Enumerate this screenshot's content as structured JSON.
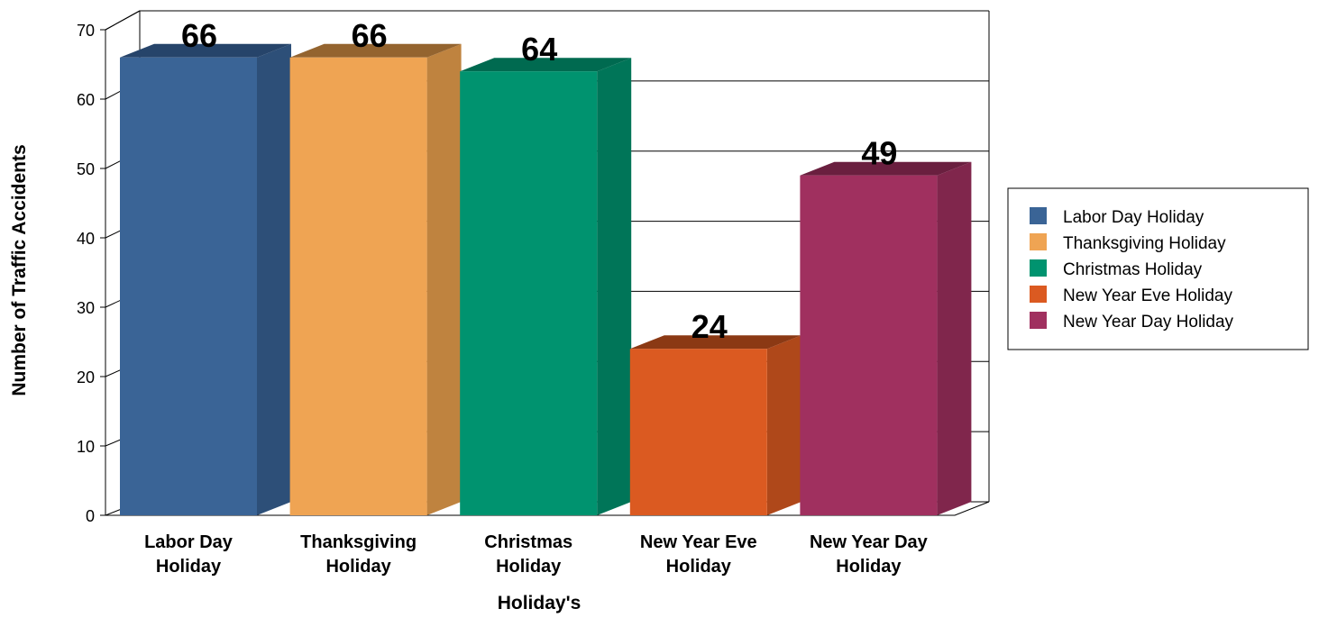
{
  "chart_data": {
    "type": "bar",
    "categories": [
      "Labor Day Holiday",
      "Thanksgiving Holiday",
      "Christmas Holiday",
      "New Year Eve Holiday",
      "New Year Day Holiday"
    ],
    "category_lines": [
      [
        "Labor Day",
        "Holiday"
      ],
      [
        "Thanksgiving",
        "Holiday"
      ],
      [
        "Christmas",
        "Holiday"
      ],
      [
        "New Year Eve",
        "Holiday"
      ],
      [
        "New Year Day",
        "Holiday"
      ]
    ],
    "values": [
      66,
      66,
      64,
      24,
      49
    ],
    "value_labels": [
      "66",
      "66",
      "64",
      "24",
      "49"
    ],
    "colors": [
      "#3a6496",
      "#efa453",
      "#00936f",
      "#db5a21",
      "#a0305f"
    ],
    "side_colors": [
      "#2d4f78",
      "#bf833f",
      "#007558",
      "#af481a",
      "#80264c"
    ],
    "top_colors": [
      "#26446a",
      "#94642f",
      "#006a50",
      "#8b3914",
      "#6a1f3f"
    ],
    "xlabel": "Holiday's",
    "ylabel": "Number of Traffic Accidents",
    "ylim": [
      0,
      70
    ],
    "yticks": [
      "0",
      "10",
      "20",
      "30",
      "40",
      "50",
      "60",
      "70"
    ],
    "grid": true,
    "legend_position": "right",
    "legend": [
      "Labor Day Holiday",
      "Thanksgiving Holiday",
      "Christmas Holiday",
      "New Year Eve Holiday",
      "New Year Day Holiday"
    ]
  }
}
